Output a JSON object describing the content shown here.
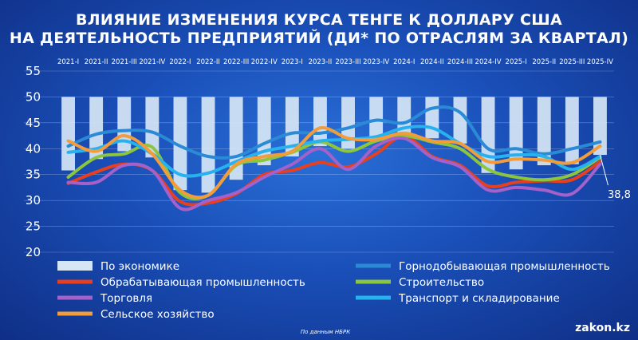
{
  "chart_data": {
    "type": "line",
    "title": "ВЛИЯНИЕ ИЗМЕНЕНИЯ КУРСА ТЕНГЕ К ДОЛЛАРУ США\nНА ДЕЯТЕЛЬНОСТЬ ПРЕДПРИЯТИЙ (ДИ* ПО ОТРАСЛЯМ ЗА КВАРТАЛ)",
    "categories": [
      "2021-I",
      "2021-II",
      "2021-III",
      "2021-IV",
      "2022-I",
      "2022-II",
      "2022-III",
      "2022-IV",
      "2023-I",
      "2023-II",
      "2023-III",
      "2023-IV",
      "2024-I",
      "2024-II",
      "2024-III",
      "2024-IV",
      "2025-I",
      "2025-II",
      "2025-III",
      "2025-IV"
    ],
    "ylim": [
      20,
      55
    ],
    "yticks": [
      20,
      25,
      30,
      35,
      40,
      45,
      50,
      55
    ],
    "bar_base": 50,
    "legend_position": "bottom",
    "series": [
      {
        "name": "По экономике",
        "kind": "bar",
        "color": "#d6e6f5",
        "values": [
          35.8,
          38.0,
          39.5,
          38.3,
          32.0,
          31.5,
          34.0,
          36.8,
          38.5,
          40.5,
          40.0,
          41.5,
          42.5,
          42.0,
          41.0,
          35.3,
          36.0,
          36.8,
          37.0,
          38.8
        ]
      },
      {
        "name": "Горнодобывающая промышленность",
        "kind": "line",
        "color": "#2b8ad6",
        "values": [
          40.5,
          42.8,
          43.5,
          43.2,
          40.5,
          38.5,
          38.5,
          41.0,
          43.0,
          43.0,
          44.0,
          45.5,
          45.0,
          47.8,
          47.0,
          40.0,
          40.0,
          39.0,
          40.0,
          41.3
        ]
      },
      {
        "name": "Обрабатывающая промышленность",
        "kind": "line",
        "color": "#e8401e",
        "values": [
          33.3,
          35.5,
          37.0,
          35.8,
          29.8,
          29.5,
          31.3,
          35.0,
          35.8,
          37.3,
          36.5,
          39.0,
          42.5,
          38.5,
          36.8,
          32.8,
          33.5,
          33.8,
          34.0,
          37.5
        ]
      },
      {
        "name": "Строительство",
        "kind": "line",
        "color": "#8cc63f",
        "values": [
          34.5,
          38.3,
          39.0,
          40.3,
          31.5,
          31.0,
          36.8,
          37.8,
          39.3,
          41.3,
          39.5,
          41.5,
          42.5,
          41.3,
          40.0,
          36.0,
          34.5,
          34.0,
          35.0,
          38.3
        ]
      },
      {
        "name": "Торговля",
        "kind": "line",
        "color": "#a361c9",
        "values": [
          33.5,
          33.5,
          36.8,
          35.8,
          28.5,
          30.0,
          31.5,
          34.5,
          37.0,
          40.0,
          36.0,
          40.5,
          42.0,
          38.3,
          36.5,
          32.0,
          32.5,
          32.0,
          31.3,
          37.0
        ]
      },
      {
        "name": "Транспорт и складирование",
        "kind": "line",
        "color": "#27b2ef",
        "values": [
          39.3,
          40.0,
          41.5,
          39.0,
          35.0,
          35.3,
          37.5,
          39.5,
          40.5,
          41.5,
          41.8,
          42.3,
          44.0,
          44.0,
          41.0,
          38.5,
          38.8,
          38.5,
          36.0,
          38.5
        ]
      },
      {
        "name": "Сельское хозяйство",
        "kind": "line",
        "color": "#f39c3a",
        "values": [
          41.5,
          39.5,
          42.5,
          39.0,
          32.0,
          31.0,
          37.0,
          38.5,
          39.5,
          44.0,
          42.0,
          41.8,
          43.0,
          41.5,
          41.0,
          37.5,
          38.0,
          37.8,
          37.3,
          40.5
        ]
      }
    ],
    "annotation": {
      "text": "38,8",
      "category": "2025-IV"
    },
    "source": "По данным НБРК",
    "logo": "zakon.kz"
  }
}
